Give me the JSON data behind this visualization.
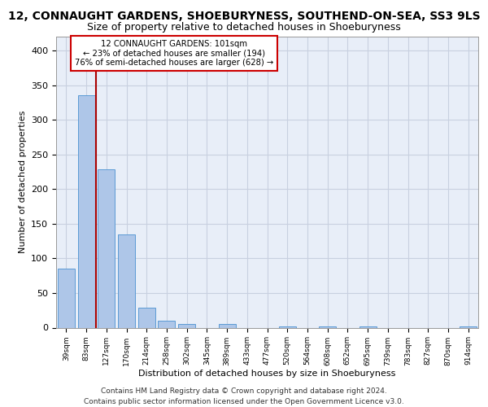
{
  "title_line1": "12, CONNAUGHT GARDENS, SHOEBURYNESS, SOUTHEND-ON-SEA, SS3 9LS",
  "title_line2": "Size of property relative to detached houses in Shoeburyness",
  "xlabel": "Distribution of detached houses by size in Shoeburyness",
  "ylabel": "Number of detached properties",
  "footer": "Contains HM Land Registry data © Crown copyright and database right 2024.\nContains public sector information licensed under the Open Government Licence v3.0.",
  "categories": [
    "39sqm",
    "83sqm",
    "127sqm",
    "170sqm",
    "214sqm",
    "258sqm",
    "302sqm",
    "345sqm",
    "389sqm",
    "433sqm",
    "477sqm",
    "520sqm",
    "564sqm",
    "608sqm",
    "652sqm",
    "695sqm",
    "739sqm",
    "783sqm",
    "827sqm",
    "870sqm",
    "914sqm"
  ],
  "values": [
    85,
    335,
    228,
    135,
    29,
    10,
    5,
    0,
    5,
    0,
    0,
    2,
    0,
    2,
    0,
    2,
    0,
    0,
    0,
    0,
    2
  ],
  "bar_color": "#aec6e8",
  "bar_edge_color": "#5b9bd5",
  "annotation_box_text": "12 CONNAUGHT GARDENS: 101sqm\n← 23% of detached houses are smaller (194)\n76% of semi-detached houses are larger (628) →",
  "annotation_box_color": "#ffffff",
  "annotation_box_edge_color": "#cc0000",
  "vline_color": "#aa0000",
  "ylim": [
    0,
    420
  ],
  "yticks": [
    0,
    50,
    100,
    150,
    200,
    250,
    300,
    350,
    400
  ],
  "grid_color": "#c8d0e0",
  "bg_color": "#e8eef8",
  "title_fontsize": 10,
  "subtitle_fontsize": 9,
  "footer_fontsize": 6.5
}
